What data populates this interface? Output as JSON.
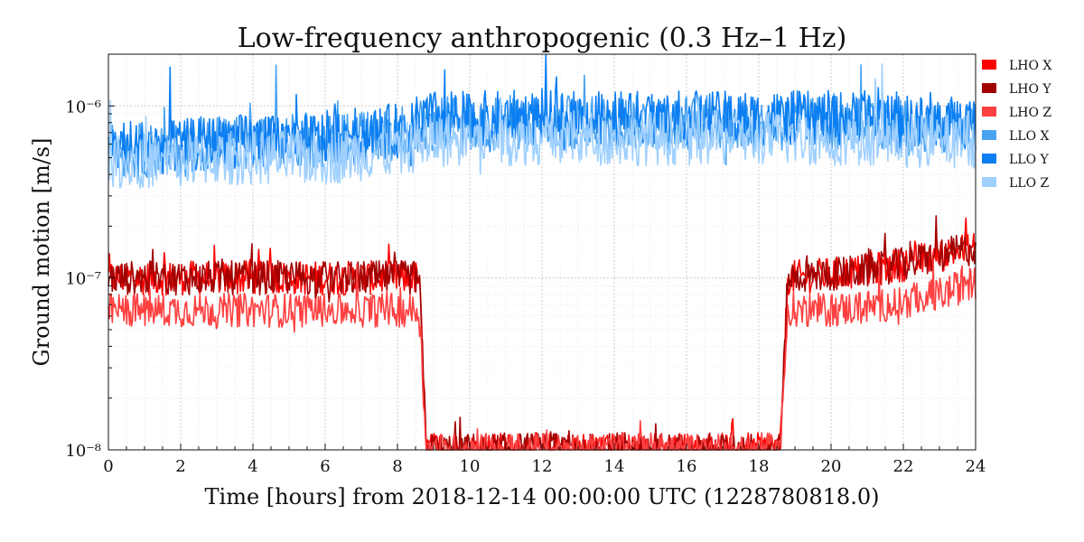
{
  "chart_data": {
    "type": "line",
    "title": "Low-frequency anthropogenic (0.3 Hz–1 Hz)",
    "xlabel": "Time [hours] from 2018-12-14 00:00:00 UTC (1228780818.0)",
    "ylabel": "Ground motion [m/s]",
    "xlim": [
      0,
      24
    ],
    "ylim": [
      1e-08,
      2e-06
    ],
    "yscale": "log",
    "grid": true,
    "legend_position": "right",
    "x_ticks": [
      "0",
      "2",
      "4",
      "6",
      "8",
      "10",
      "12",
      "14",
      "16",
      "18",
      "20",
      "22",
      "24"
    ],
    "y_ticks": [
      {
        "label": "10⁻⁸",
        "value": 1e-08
      },
      {
        "label": "10⁻⁷",
        "value": 1e-07
      },
      {
        "label": "10⁻⁶",
        "value": 1e-06
      }
    ],
    "x": [
      0,
      1,
      2,
      3,
      4,
      5,
      6,
      7,
      8,
      8.6,
      8.8,
      10,
      12,
      14,
      16,
      18,
      18.6,
      18.8,
      20,
      21,
      22,
      23,
      24
    ],
    "series": [
      {
        "name": "LHO X",
        "color": "#ff0000",
        "values": [
          1e-07,
          1e-07,
          1e-07,
          1e-07,
          1e-07,
          1e-07,
          1e-07,
          1e-07,
          1e-07,
          1e-07,
          1e-08,
          1e-08,
          1e-08,
          1e-08,
          1e-08,
          1e-08,
          1e-08,
          1e-07,
          1.05e-07,
          1.1e-07,
          1.2e-07,
          1.35e-07,
          1.5e-07
        ]
      },
      {
        "name": "LHO Y",
        "color": "#a30000",
        "values": [
          1e-07,
          1e-07,
          1e-07,
          1e-07,
          1e-07,
          1e-07,
          1e-07,
          1e-07,
          1e-07,
          1e-07,
          1e-08,
          1e-08,
          1e-08,
          1e-08,
          1e-08,
          1e-08,
          1e-08,
          1e-07,
          1.05e-07,
          1.1e-07,
          1.2e-07,
          1.35e-07,
          1.5e-07
        ]
      },
      {
        "name": "LHO Z",
        "color": "#ff4040",
        "values": [
          6.5e-08,
          6.5e-08,
          6.5e-08,
          6.5e-08,
          6.5e-08,
          6.5e-08,
          6.5e-08,
          6.5e-08,
          6.5e-08,
          6.5e-08,
          1e-08,
          1e-08,
          1e-08,
          1e-08,
          1e-08,
          1e-08,
          1e-08,
          6.5e-08,
          6.5e-08,
          6.8e-08,
          7.2e-08,
          8e-08,
          9.5e-08
        ]
      },
      {
        "name": "LLO X",
        "color": "#4aa3f0",
        "values": [
          5.5e-07,
          5.5e-07,
          5.5e-07,
          6e-07,
          6e-07,
          6.2e-07,
          6.3e-07,
          6.5e-07,
          7e-07,
          7.5e-07,
          7.8e-07,
          8e-07,
          8e-07,
          8e-07,
          8e-07,
          8e-07,
          7.8e-07,
          7.8e-07,
          8e-07,
          8e-07,
          7.5e-07,
          7.5e-07,
          7.5e-07
        ]
      },
      {
        "name": "LLO Y",
        "color": "#0a7ef2",
        "values": [
          5.8e-07,
          5.8e-07,
          5.8e-07,
          6.2e-07,
          6.2e-07,
          6.2e-07,
          6.5e-07,
          6.8e-07,
          7.2e-07,
          8e-07,
          8.5e-07,
          8.5e-07,
          8.5e-07,
          8.5e-07,
          8.5e-07,
          8.5e-07,
          8.5e-07,
          8.5e-07,
          8.5e-07,
          8.5e-07,
          8e-07,
          8e-07,
          8e-07
        ]
      },
      {
        "name": "LLO Z",
        "color": "#9fd0ff",
        "values": [
          4.8e-07,
          4.8e-07,
          4.8e-07,
          5e-07,
          5e-07,
          5e-07,
          5e-07,
          5.3e-07,
          5.6e-07,
          6e-07,
          6.3e-07,
          6.5e-07,
          6.5e-07,
          6.5e-07,
          6.5e-07,
          6.5e-07,
          6.5e-07,
          6.5e-07,
          6.5e-07,
          6.5e-07,
          6.3e-07,
          6.3e-07,
          6.3e-07
        ]
      }
    ]
  }
}
